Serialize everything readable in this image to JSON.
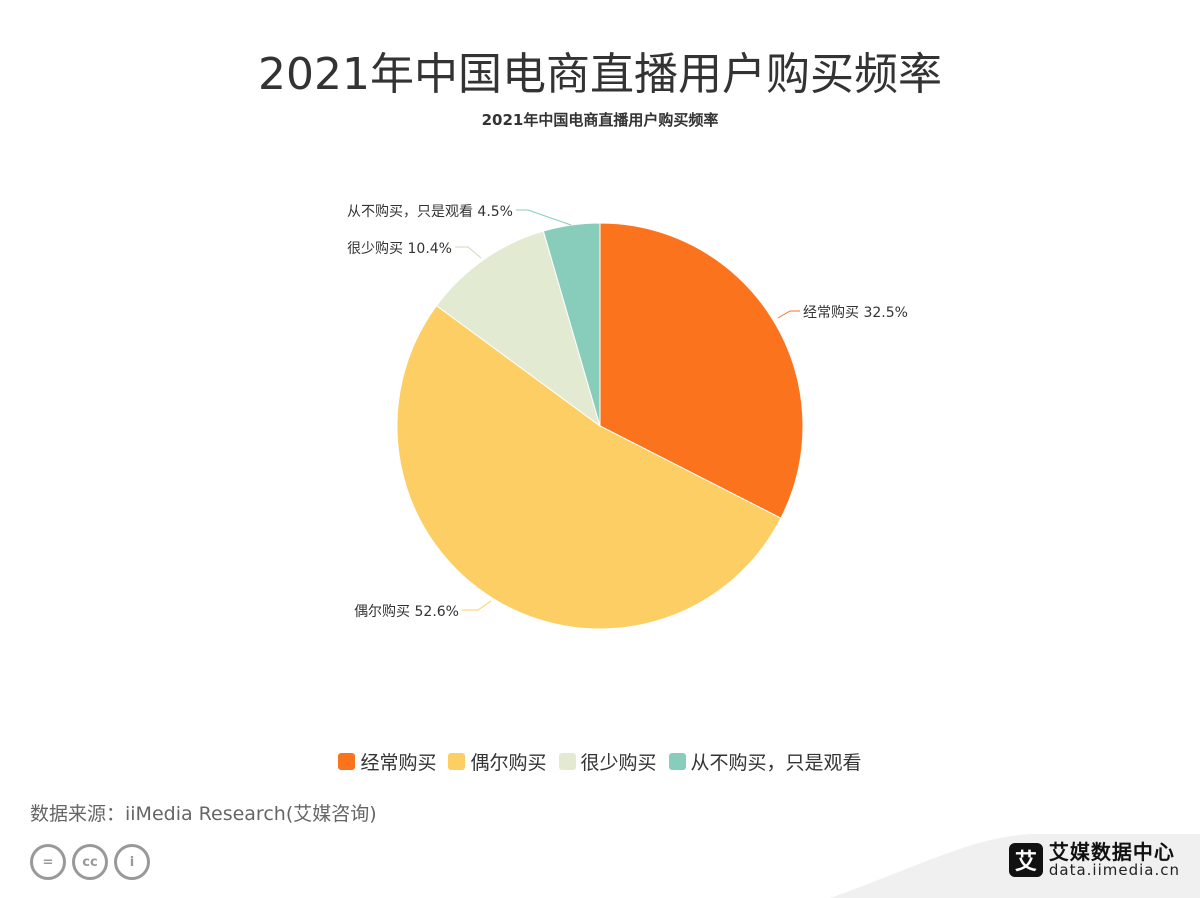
{
  "header": {
    "title": "2021年中国电商直播用户购买频率"
  },
  "chart_data": {
    "type": "pie",
    "title": "2021年中国电商直播用户购买频率",
    "categories": [
      "经常购买",
      "偶尔购买",
      "很少购买",
      "从不购买，只是观看"
    ],
    "values": [
      32.5,
      52.6,
      10.4,
      4.5
    ],
    "unit": "%",
    "colors": [
      "#fc731d",
      "#fcce63",
      "#e2ead2",
      "#88cdbb"
    ],
    "slice_labels": [
      "经常购买 32.5%",
      "偶尔购买 52.6%",
      "很少购买 10.4%",
      "从不购买，只是观看 4.5%"
    ],
    "legend_position": "bottom"
  },
  "footer": {
    "source": "数据来源：iiMedia Research(艾媒咨询)",
    "license_icons": [
      "equals-icon",
      "cc-icon",
      "person-icon"
    ],
    "license_glyphs": [
      "=",
      "cc",
      "i"
    ]
  },
  "brand": {
    "mark": "艾",
    "name": "艾媒数据中心",
    "url": "data.iimedia.cn"
  }
}
